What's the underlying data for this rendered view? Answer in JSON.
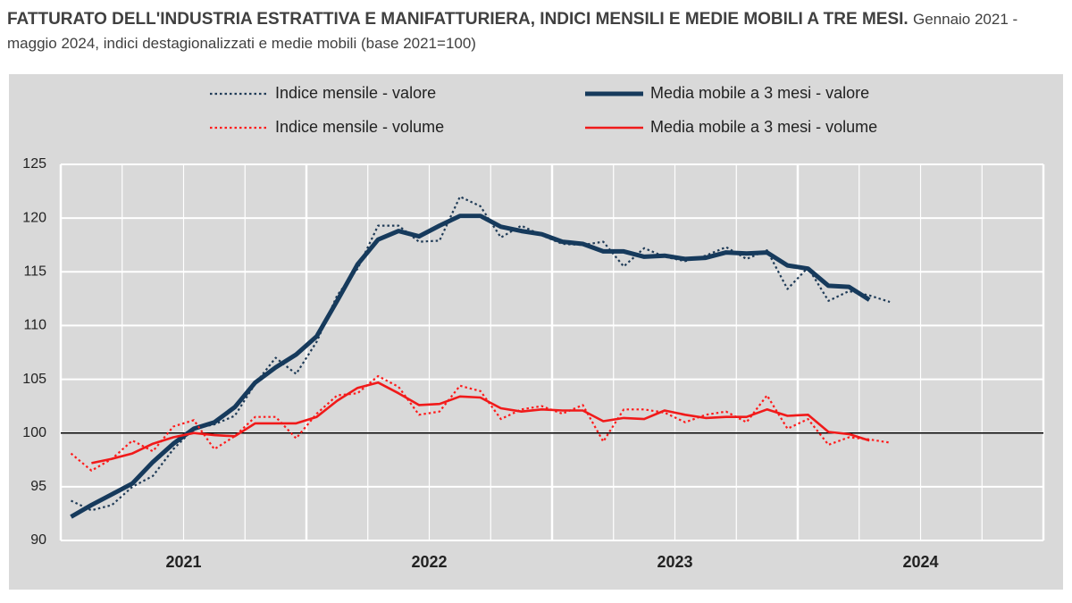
{
  "chart_data": {
    "type": "line",
    "title": "FATTURATO DELL'INDUSTRIA ESTRATTIVA E MANIFATTURIERA, INDICI MENSILI E MEDIE MOBILI A TRE MESI.",
    "subtitle": "Gennaio 2021 - maggio 2024, indici destagionalizzati e medie mobili (base 2021=100)",
    "x": [
      1,
      2,
      3,
      4,
      5,
      6,
      7,
      8,
      9,
      10,
      11,
      12,
      13,
      14,
      15,
      16,
      17,
      18,
      19,
      20,
      21,
      22,
      23,
      24,
      25,
      26,
      27,
      28,
      29,
      30,
      31,
      32,
      33,
      34,
      35,
      36,
      37,
      38,
      39,
      40,
      41
    ],
    "xlim": [
      0.5,
      48.5
    ],
    "xticks": [
      {
        "value": 6.5,
        "label": "2021"
      },
      {
        "value": 18.5,
        "label": "2022"
      },
      {
        "value": 30.5,
        "label": "2023"
      },
      {
        "value": 42.5,
        "label": "2024"
      }
    ],
    "ylim": [
      90,
      125
    ],
    "yticks": [
      90,
      95,
      100,
      105,
      110,
      115,
      120,
      125
    ],
    "reference_line": 100,
    "grid": true,
    "series": [
      {
        "name": "Indice mensile - valore",
        "color": "#1f3b57",
        "style": "dotted",
        "values": [
          93.7,
          92.8,
          93.3,
          95.0,
          96.0,
          98.5,
          100.4,
          100.8,
          101.6,
          104.6,
          107.0,
          105.5,
          108.5,
          112.8,
          115.3,
          119.3,
          119.3,
          117.8,
          117.9,
          122.0,
          121.1,
          118.2,
          119.3,
          118.4,
          117.6,
          117.5,
          117.8,
          115.5,
          117.2,
          116.4,
          116.0,
          116.5,
          117.3,
          116.2,
          117.0,
          113.4,
          115.4,
          112.3,
          113.2,
          112.8,
          112.2
        ]
      },
      {
        "name": "Media mobile a 3 mesi - valore",
        "color": "#163a5c",
        "style": "thick",
        "values": [
          92.2,
          93.3,
          94.3,
          95.3,
          97.3,
          99.0,
          100.4,
          101.0,
          102.4,
          104.7,
          106.1,
          107.3,
          109.0,
          112.3,
          115.7,
          118.0,
          118.8,
          118.3,
          119.3,
          120.2,
          120.2,
          119.2,
          118.8,
          118.5,
          117.8,
          117.6,
          116.9,
          116.9,
          116.4,
          116.5,
          116.2,
          116.3,
          116.8,
          116.7,
          116.8,
          115.6,
          115.3,
          113.7,
          113.6,
          112.4,
          null
        ]
      },
      {
        "name": "Indice mensile - volume",
        "color": "#ff1a1a",
        "style": "dotted",
        "values": [
          98.1,
          96.5,
          97.6,
          99.3,
          98.3,
          100.6,
          101.2,
          98.5,
          99.7,
          101.5,
          101.5,
          99.5,
          101.8,
          103.5,
          103.7,
          105.3,
          104.3,
          101.7,
          102.0,
          104.4,
          103.9,
          101.3,
          102.2,
          102.5,
          101.8,
          102.6,
          99.2,
          102.2,
          102.2,
          101.9,
          101.0,
          101.7,
          102.0,
          101.0,
          103.5,
          100.4,
          101.3,
          98.9,
          99.6,
          99.4,
          99.1
        ]
      },
      {
        "name": "Media mobile a 3 mesi - volume",
        "color": "#f01a1a",
        "style": "solid",
        "values": [
          null,
          97.2,
          97.6,
          98.1,
          99.0,
          99.6,
          100.0,
          99.8,
          99.7,
          100.9,
          100.9,
          100.9,
          101.5,
          103.0,
          104.2,
          104.7,
          103.7,
          102.6,
          102.7,
          103.4,
          103.3,
          102.3,
          102.0,
          102.2,
          102.1,
          102.1,
          101.1,
          101.4,
          101.3,
          102.1,
          101.7,
          101.4,
          101.5,
          101.5,
          102.2,
          101.6,
          101.7,
          100.1,
          99.9,
          99.3,
          null
        ]
      }
    ]
  }
}
